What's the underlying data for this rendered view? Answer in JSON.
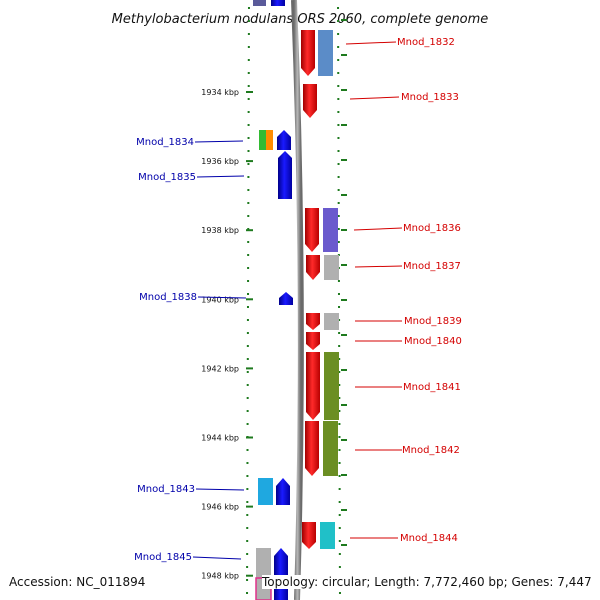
{
  "title": "Methylobacterium nodulans ORS 2060, complete genome",
  "accession": "Accession: NC_011894",
  "topology": "Topology: circular; Length: 7,772,460 bp; Genes: 7,447",
  "colors": {
    "backbone": "#8a8a8a",
    "tick": "#1e7a1e",
    "forward_label": "#d40000",
    "reverse_label": "#0000aa"
  },
  "scale_labels": [
    "1934 kbp",
    "1936 kbp",
    "1938 kbp",
    "1940 kbp",
    "1942 kbp",
    "1944 kbp",
    "1946 kbp",
    "1948 kbp"
  ],
  "forward_genes": [
    {
      "label": "Mnod_1832",
      "cog_color": "#5b8cc8"
    },
    {
      "label": "Mnod_1833",
      "cog_color": null
    },
    {
      "label": "Mnod_1836",
      "cog_color": "#6a5acd"
    },
    {
      "label": "Mnod_1837",
      "cog_color": "#b0b0b0"
    },
    {
      "label": "Mnod_1839",
      "cog_color": "#b0b0b0"
    },
    {
      "label": "Mnod_1840",
      "cog_color": null
    },
    {
      "label": "Mnod_1841",
      "cog_color": "#6b8e23"
    },
    {
      "label": "Mnod_1842",
      "cog_color": "#6b8e23"
    },
    {
      "label": "Mnod_1844",
      "cog_color": "#20c0c8"
    }
  ],
  "reverse_genes": [
    {
      "label": "Mnod_1834",
      "cog_color": "#33bb33"
    },
    {
      "label": "Mnod_1835",
      "cog_color": null
    },
    {
      "label": "Mnod_1838",
      "cog_color": null
    },
    {
      "label": "Mnod_1843",
      "cog_color": "#1fa8e0"
    },
    {
      "label": "Mnod_1845",
      "cog_color": "#b0b0b0"
    }
  ]
}
